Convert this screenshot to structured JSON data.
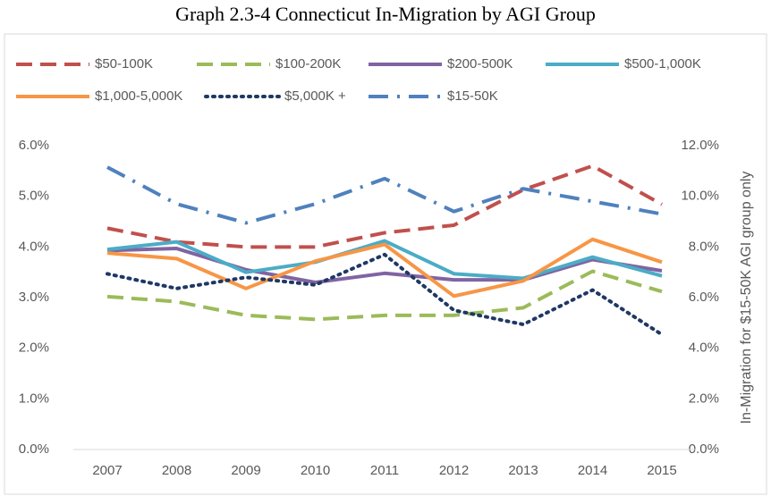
{
  "chart_data": {
    "type": "line",
    "title": "Graph 2.3-4 Connecticut In-Migration by AGI Group",
    "y2label": "In-Migration for $15-50K AGI group only",
    "categories": [
      "2007",
      "2008",
      "2009",
      "2010",
      "2011",
      "2012",
      "2013",
      "2014",
      "2015"
    ],
    "ylim": [
      0,
      6
    ],
    "yticks": [
      {
        "value": 0,
        "label": "0.0%"
      },
      {
        "value": 1,
        "label": "1.0%"
      },
      {
        "value": 2,
        "label": "2.0%"
      },
      {
        "value": 3,
        "label": "3.0%"
      },
      {
        "value": 4,
        "label": "4.0%"
      },
      {
        "value": 5,
        "label": "5.0%"
      },
      {
        "value": 6,
        "label": "6.0%"
      }
    ],
    "y2lim": [
      0,
      12
    ],
    "y2ticks": [
      {
        "value": 0,
        "label": "0.0%"
      },
      {
        "value": 2,
        "label": "2.0%"
      },
      {
        "value": 4,
        "label": "4.0%"
      },
      {
        "value": 6,
        "label": "6.0%"
      },
      {
        "value": 8,
        "label": "8.0%"
      },
      {
        "value": 10,
        "label": "10.0%"
      },
      {
        "value": 12,
        "label": "12.0%"
      }
    ],
    "series": [
      {
        "name": "$50-100K",
        "color": "#c0504d",
        "style": "dash",
        "values": [
          4.37,
          4.1,
          4.0,
          4.0,
          4.28,
          4.43,
          5.13,
          5.6,
          4.84
        ]
      },
      {
        "name": "$100-200K",
        "color": "#9bbb59",
        "style": "dash",
        "values": [
          3.02,
          2.92,
          2.65,
          2.57,
          2.65,
          2.65,
          2.8,
          3.52,
          3.12
        ]
      },
      {
        "name": "$200-500K",
        "color": "#8064a2",
        "style": "solid",
        "values": [
          3.93,
          3.97,
          3.55,
          3.3,
          3.48,
          3.35,
          3.35,
          3.75,
          3.53
        ]
      },
      {
        "name": "$500-1,000K",
        "color": "#4bacc6",
        "style": "solid",
        "values": [
          3.95,
          4.1,
          3.5,
          3.7,
          4.12,
          3.47,
          3.38,
          3.8,
          3.43
        ]
      },
      {
        "name": "$1,000-5,000K",
        "color": "#f79646",
        "style": "solid",
        "values": [
          3.88,
          3.77,
          3.18,
          3.72,
          4.05,
          3.03,
          3.33,
          4.15,
          3.7
        ]
      },
      {
        "name": "$5,000K +",
        "color": "#1f3864",
        "style": "dot",
        "values": [
          3.47,
          3.18,
          3.4,
          3.25,
          3.85,
          2.75,
          2.47,
          3.15,
          2.27
        ]
      },
      {
        "name": "$15-50K",
        "color": "#4f81bd",
        "style": "dashdot",
        "axis": "y2",
        "values": [
          11.15,
          9.7,
          8.95,
          9.7,
          10.7,
          9.4,
          10.3,
          9.8,
          9.3
        ]
      }
    ]
  }
}
